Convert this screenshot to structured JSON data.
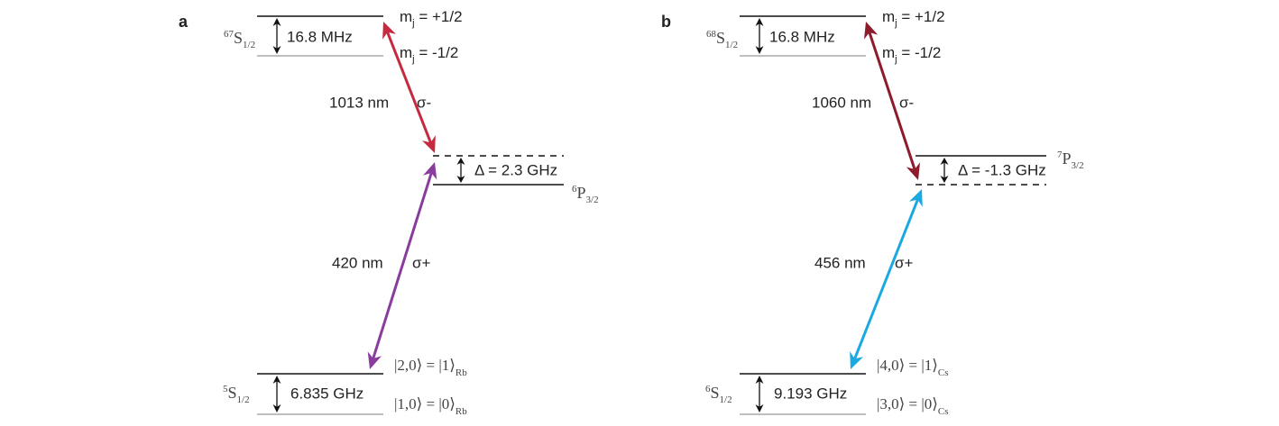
{
  "panels": [
    {
      "label": "a",
      "upper_state": {
        "sup": "67",
        "main": "S",
        "sub": "1/2"
      },
      "upper_splitting": "16.8 MHz",
      "mj_upper": {
        "symbol": "m",
        "sub": "j",
        "rest": " = +1/2"
      },
      "mj_lower": {
        "symbol": "m",
        "sub": "j",
        "rest": " = -1/2"
      },
      "upper_wavelength": "1013 nm",
      "upper_polarization": "σ-",
      "upper_color": "#c62a40",
      "detuning": "Δ = 2.3 GHz",
      "intermediate_state": {
        "sup": "6",
        "main": "P",
        "sub": "3/2"
      },
      "lower_wavelength": "420 nm",
      "lower_polarization": "σ+",
      "lower_color": "#8a3c9e",
      "ground_state": {
        "sup": "5",
        "main": "S",
        "sub": "1/2"
      },
      "ground_splitting": "6.835 GHz",
      "ket_upper": {
        "text": "|2,0⟩ = |1⟩",
        "sub": "Rb"
      },
      "ket_lower": {
        "text": "|1,0⟩ = |0⟩",
        "sub": "Rb"
      }
    },
    {
      "label": "b",
      "upper_state": {
        "sup": "68",
        "main": "S",
        "sub": "1/2"
      },
      "upper_splitting": "16.8 MHz",
      "mj_upper": {
        "symbol": "m",
        "sub": "j",
        "rest": " = +1/2"
      },
      "mj_lower": {
        "symbol": "m",
        "sub": "j",
        "rest": " = -1/2"
      },
      "upper_wavelength": "1060 nm",
      "upper_polarization": "σ-",
      "upper_color": "#8e1b2c",
      "detuning": "Δ = -1.3 GHz",
      "intermediate_state": {
        "sup": "7",
        "main": "P",
        "sub": "3/2"
      },
      "lower_wavelength": "456 nm",
      "lower_polarization": "σ+",
      "lower_color": "#1ba9e1",
      "ground_state": {
        "sup": "6",
        "main": "S",
        "sub": "1/2"
      },
      "ground_splitting": "9.193 GHz",
      "ket_upper": {
        "text": "|4,0⟩ = |1⟩",
        "sub": "Cs"
      },
      "ket_lower": {
        "text": "|3,0⟩ = |0⟩",
        "sub": "Cs"
      }
    }
  ]
}
